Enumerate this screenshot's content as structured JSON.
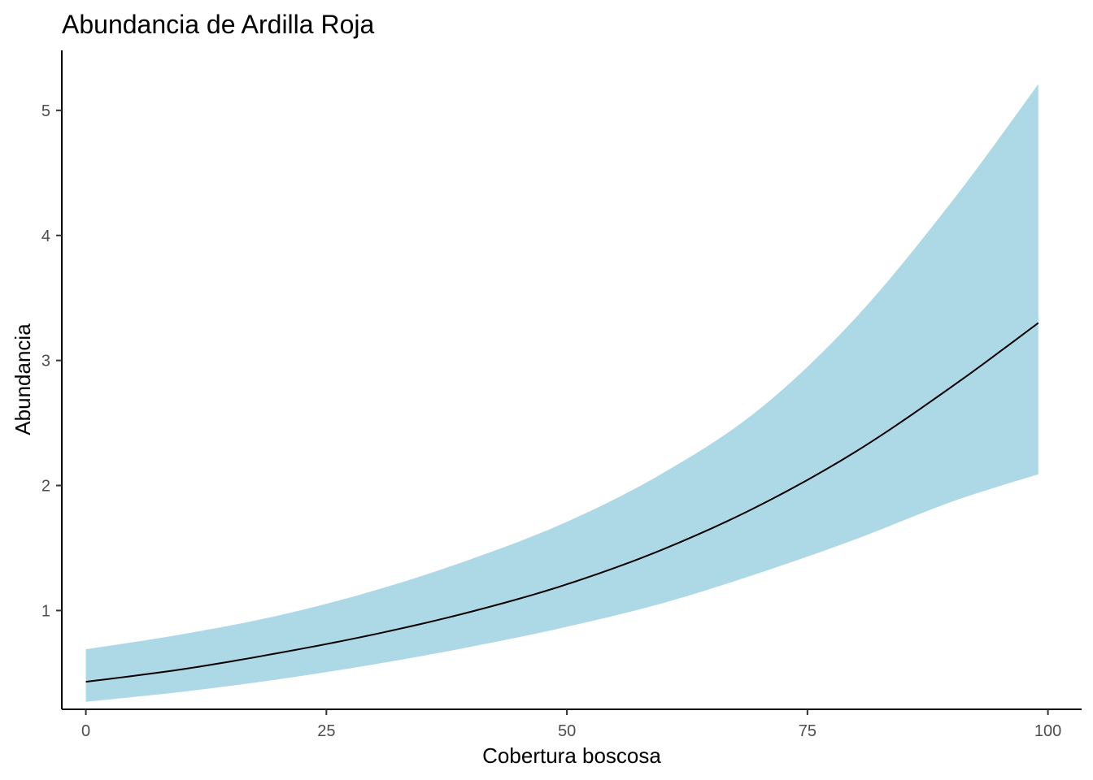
{
  "chart_data": {
    "type": "line",
    "title": "Abundancia de Ardilla Roja",
    "xlabel": "Cobertura boscosa",
    "ylabel": "Abundancia",
    "xlim": [
      -2.5,
      103.5
    ],
    "ylim": [
      0.21,
      5.48
    ],
    "x_ticks": [
      0,
      25,
      50,
      75,
      100
    ],
    "x_tick_labels": [
      "0",
      "25",
      "50",
      "75",
      "100"
    ],
    "y_ticks": [
      1,
      2,
      3,
      4,
      5
    ],
    "y_tick_labels": [
      "1",
      "2",
      "3",
      "4",
      "5"
    ],
    "grid": false,
    "legend": "none",
    "colors": {
      "ribbon": "#add8e6",
      "line": "#000000",
      "axis": "#000000"
    },
    "series": [
      {
        "type": "ribbon",
        "x": [
          0,
          10,
          20,
          30,
          40,
          50,
          60,
          70,
          80,
          90,
          99
        ],
        "lower": [
          0.27,
          0.35,
          0.45,
          0.57,
          0.71,
          0.87,
          1.06,
          1.3,
          1.57,
          1.87,
          2.09
        ],
        "upper": [
          0.69,
          0.81,
          0.96,
          1.16,
          1.41,
          1.71,
          2.1,
          2.61,
          3.34,
          4.27,
          5.21
        ]
      },
      {
        "type": "line",
        "x": [
          0,
          10,
          20,
          30,
          40,
          50,
          60,
          70,
          80,
          90,
          99
        ],
        "y": [
          0.43,
          0.53,
          0.66,
          0.81,
          0.99,
          1.21,
          1.49,
          1.84,
          2.27,
          2.79,
          3.3
        ]
      }
    ]
  }
}
